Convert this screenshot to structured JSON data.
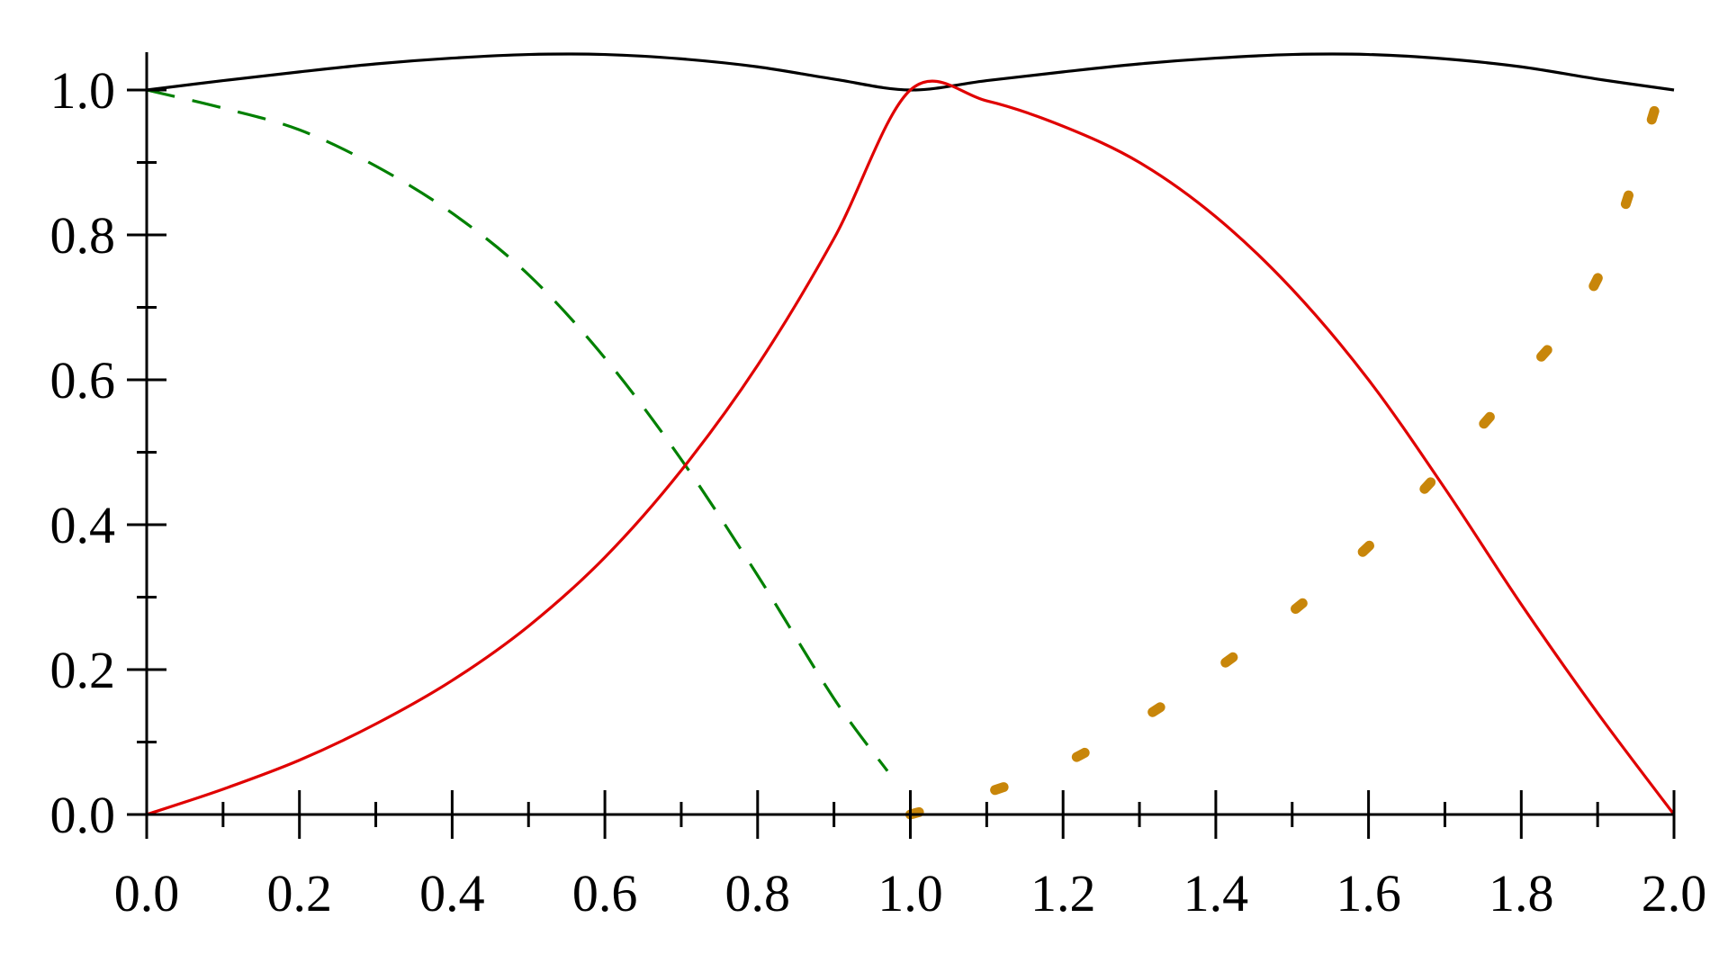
{
  "chart_data": {
    "type": "line",
    "title": "",
    "xlabel": "",
    "ylabel": "",
    "xlim": [
      0,
      2
    ],
    "ylim": [
      0,
      1
    ],
    "grid": false,
    "x_ticks": [
      "0.0",
      "0.2",
      "0.4",
      "0.6",
      "0.8",
      "1.0",
      "1.2",
      "1.4",
      "1.6",
      "1.8",
      "2.0"
    ],
    "y_ticks": [
      "0.0",
      "0.2",
      "0.4",
      "0.6",
      "0.8",
      "1.0"
    ],
    "series": [
      {
        "color": "#000000",
        "style": "solid",
        "x": [
          0,
          0.1,
          0.2,
          0.3,
          0.4,
          0.5,
          0.6,
          0.7,
          0.8,
          0.9,
          1.0,
          1.1,
          1.2,
          1.3,
          1.4,
          1.5,
          1.6,
          1.7,
          1.8,
          1.9,
          2.0
        ],
        "y": [
          1.0,
          1.013,
          1.025,
          1.036,
          1.044,
          1.049,
          1.049,
          1.043,
          1.032,
          1.015,
          1.0,
          1.013,
          1.025,
          1.036,
          1.044,
          1.049,
          1.049,
          1.043,
          1.032,
          1.015,
          1.0
        ]
      },
      {
        "color": "#008000",
        "style": "dashed",
        "x": [
          0,
          0.1,
          0.2,
          0.3,
          0.4,
          0.5,
          0.6,
          0.7,
          0.8,
          0.9,
          0.97
        ],
        "y": [
          1.0,
          0.975,
          0.945,
          0.895,
          0.83,
          0.745,
          0.63,
          0.49,
          0.33,
          0.16,
          0.06
        ]
      },
      {
        "color": "#e00000",
        "style": "solid",
        "x": [
          0,
          0.1,
          0.2,
          0.3,
          0.4,
          0.5,
          0.6,
          0.7,
          0.8,
          0.9,
          1.0,
          1.1,
          1.2,
          1.3,
          1.4,
          1.5,
          1.6,
          1.7,
          1.8,
          1.9,
          2.0
        ],
        "y": [
          0.0,
          0.035,
          0.075,
          0.125,
          0.185,
          0.26,
          0.355,
          0.475,
          0.62,
          0.795,
          1.0,
          0.985,
          0.95,
          0.9,
          0.825,
          0.725,
          0.6,
          0.45,
          0.29,
          0.14,
          0.0
        ]
      },
      {
        "color": "#c8860a",
        "style": "dotted",
        "x": [
          1.0,
          1.1,
          1.2,
          1.3,
          1.4,
          1.5,
          1.6,
          1.7,
          1.8,
          1.9,
          1.98
        ],
        "y": [
          0.0,
          0.03,
          0.07,
          0.13,
          0.2,
          0.28,
          0.37,
          0.48,
          0.6,
          0.74,
          0.99
        ]
      }
    ]
  }
}
